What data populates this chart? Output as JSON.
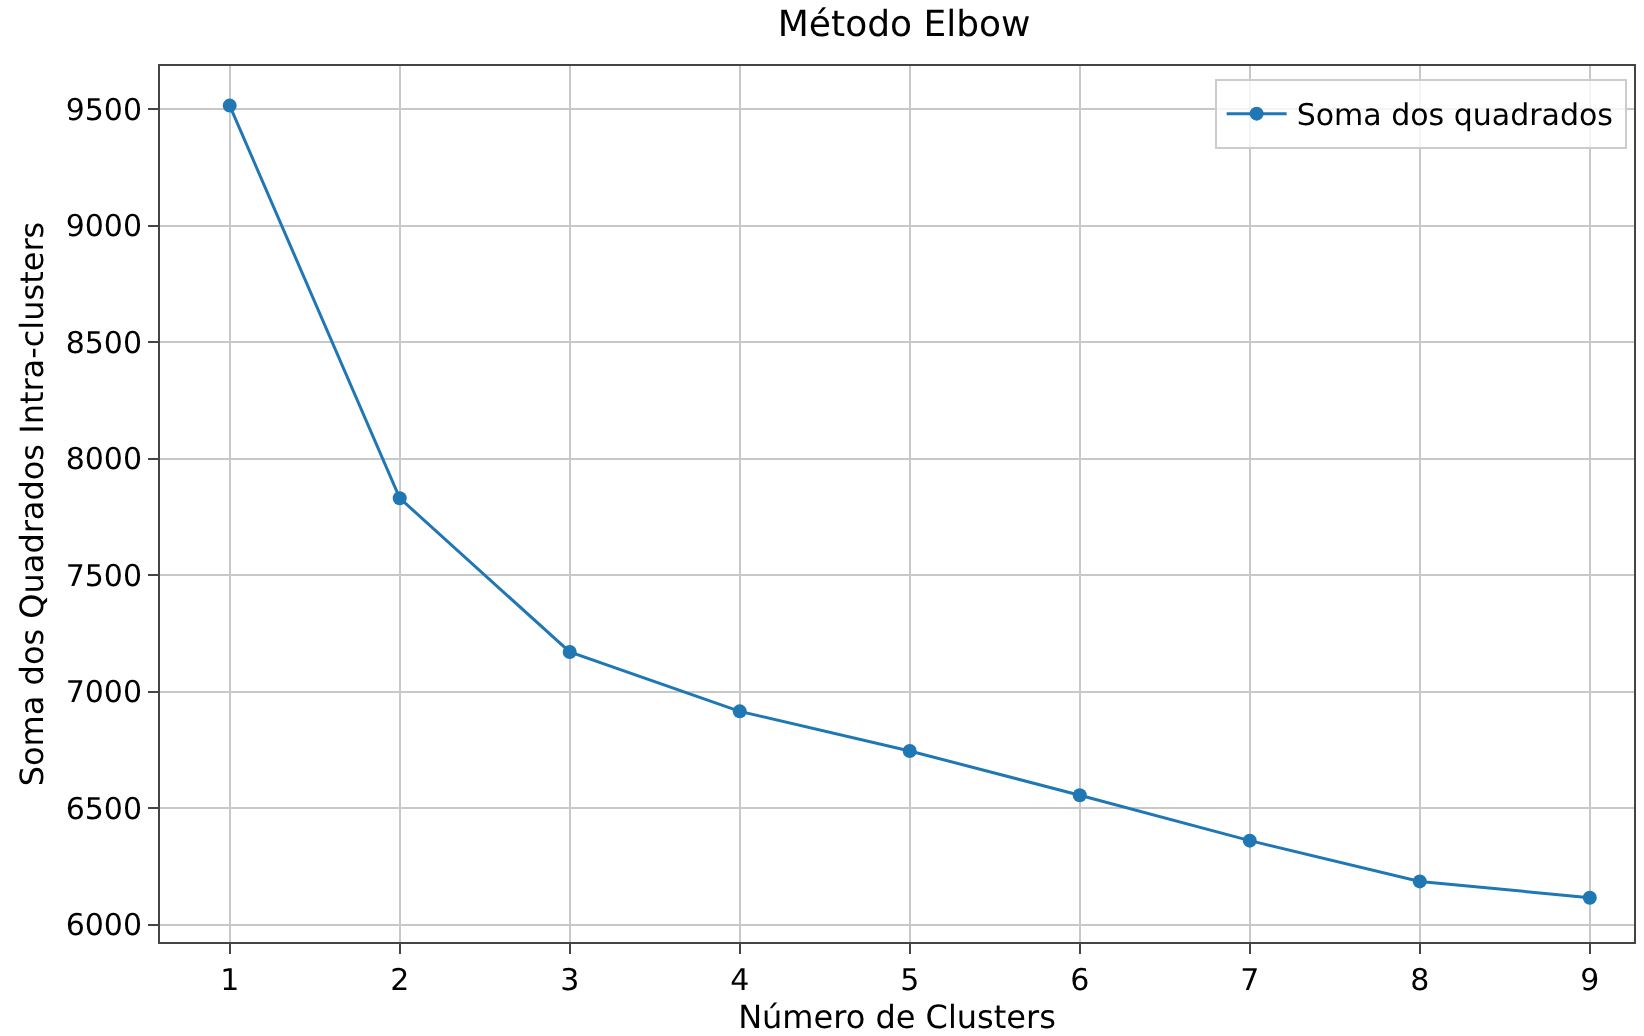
{
  "chart_data": {
    "type": "line",
    "title": "Método Elbow",
    "xlabel": "Número de Clusters",
    "ylabel": "Soma dos Quadrados Intra-clusters",
    "x": [
      1,
      2,
      3,
      4,
      5,
      6,
      7,
      8,
      9
    ],
    "series": [
      {
        "name": "Soma dos quadrados",
        "color": "#1f77b4",
        "values": [
          9515,
          7830,
          7170,
          6915,
          6745,
          6555,
          6360,
          6185,
          6115
        ]
      }
    ],
    "xlim": [
      0.59,
      9.26
    ],
    "xticks": [
      1,
      2,
      3,
      4,
      5,
      6,
      7,
      8,
      9
    ],
    "ylim": [
      5925,
      9685
    ],
    "yticks": [
      6000,
      6500,
      7000,
      7500,
      8000,
      8500,
      9000,
      9500
    ],
    "grid": true,
    "legend": "top right",
    "marker": "circle",
    "line_style": "solid"
  }
}
